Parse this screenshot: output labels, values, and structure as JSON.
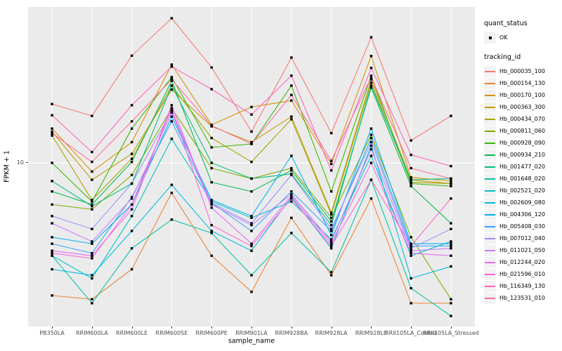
{
  "chart_data": {
    "type": "line",
    "title": "",
    "xlabel": "sample_name",
    "ylabel": "FPKM + 1",
    "y_scale": "log10",
    "y_ticks": [
      10
    ],
    "y_tick_labels": [
      "10"
    ],
    "ylim_log": [
      0.318,
      1.65
    ],
    "grid": "major-only",
    "legend_position": "right",
    "panel_bg": "#EBEBEB",
    "grid_color": "#FFFFFF",
    "key_bg": "#F2F2F2",
    "marker_color": "#000000",
    "tick_text_color": "#4D4D4D",
    "categories": [
      "PB350LA",
      "RRIM600LA",
      "RRIM600LE",
      "RRIM600SE",
      "RRIM600PE",
      "RRIM901LA",
      "RRIM928BA",
      "RRIM928LA",
      "RRIM928LE",
      "RRII105LA_Control",
      "RRII105LA_Stressed"
    ],
    "series": [
      {
        "name": "Hb_000035_100",
        "color": "#F8766D",
        "values": [
          17.6,
          15.7,
          28.0,
          40.1,
          25.0,
          13.5,
          27.5,
          13.3,
          33.4,
          12.4,
          15.7
        ]
      },
      {
        "name": "Hb_000154_130",
        "color": "#EA8331",
        "values": [
          2.8,
          2.7,
          3.6,
          7.5,
          4.1,
          2.9,
          5.9,
          3.4,
          7.1,
          2.6,
          2.6
        ]
      },
      {
        "name": "Hb_000170_100",
        "color": "#D89000",
        "values": [
          13.9,
          9.2,
          12.2,
          25.7,
          14.4,
          17.1,
          18.2,
          9.9,
          27.9,
          8.7,
          8.4
        ]
      },
      {
        "name": "Hb_000363_300",
        "color": "#C09B00",
        "values": [
          13.5,
          8.5,
          10.9,
          20.2,
          14.2,
          12.2,
          15.6,
          6.2,
          22.3,
          8.5,
          8.2
        ]
      },
      {
        "name": "Hb_000434_070",
        "color": "#A3A500",
        "values": [
          13.0,
          7.0,
          10.4,
          21.0,
          12.7,
          10.1,
          15.2,
          6.1,
          21.6,
          8.3,
          8.2
        ]
      },
      {
        "name": "Hb_000811_060",
        "color": "#7CAE00",
        "values": [
          6.7,
          6.4,
          8.9,
          16.9,
          9.5,
          8.6,
          9.5,
          5.9,
          13.1,
          4.9,
          2.7
        ]
      },
      {
        "name": "Hb_000928_090",
        "color": "#39B600",
        "values": [
          10.0,
          6.9,
          13.9,
          22.8,
          11.6,
          12.0,
          21.0,
          7.6,
          23.1,
          8.2,
          8.0
        ]
      },
      {
        "name": "Hb_000934_210",
        "color": "#00BB4E",
        "values": [
          7.6,
          6.7,
          10.1,
          22.0,
          8.3,
          7.6,
          9.3,
          5.7,
          20.6,
          8.0,
          5.6
        ]
      },
      {
        "name": "Hb_001477_020",
        "color": "#00BF7D",
        "values": [
          8.4,
          6.6,
          8.2,
          21.0,
          10.0,
          8.6,
          9.0,
          5.5,
          21.0,
          8.5,
          8.6
        ]
      },
      {
        "name": "Hb_001648_020",
        "color": "#00C1A3",
        "values": [
          4.1,
          2.6,
          4.4,
          5.8,
          5.1,
          3.4,
          5.1,
          3.5,
          8.5,
          3.0,
          2.3
        ]
      },
      {
        "name": "Hb_002521_020",
        "color": "#00BFC4",
        "values": [
          4.1,
          3.3,
          6.0,
          12.6,
          6.9,
          5.9,
          6.9,
          4.8,
          10.7,
          4.1,
          4.7
        ]
      },
      {
        "name": "Hb_002609_080",
        "color": "#00BAE0",
        "values": [
          3.6,
          3.4,
          5.2,
          8.1,
          5.2,
          4.3,
          7.2,
          4.4,
          11.8,
          3.3,
          3.7
        ]
      },
      {
        "name": "Hb_004306_120",
        "color": "#00B0F6",
        "values": [
          4.9,
          4.6,
          6.7,
          15.6,
          7.0,
          6.0,
          10.7,
          5.0,
          13.9,
          4.6,
          4.6
        ]
      },
      {
        "name": "Hb_005408_030",
        "color": "#35A2FF",
        "values": [
          4.6,
          4.2,
          7.2,
          14.9,
          6.8,
          5.2,
          7.6,
          5.2,
          12.7,
          4.5,
          4.5
        ]
      },
      {
        "name": "Hb_007012_040",
        "color": "#9590FF",
        "values": [
          6.0,
          5.3,
          8.2,
          16.5,
          6.8,
          5.6,
          8.9,
          5.3,
          12.2,
          4.4,
          5.3
        ]
      },
      {
        "name": "Hb_011021_050",
        "color": "#C77CFF",
        "values": [
          5.6,
          4.7,
          7.1,
          16.2,
          6.7,
          5.5,
          7.4,
          4.7,
          11.4,
          4.3,
          4.4
        ]
      },
      {
        "name": "Hb_012244_020",
        "color": "#E76BF3",
        "values": [
          4.3,
          4.1,
          6.4,
          17.4,
          6.5,
          4.6,
          7.3,
          4.6,
          10.0,
          4.2,
          4.1
        ]
      },
      {
        "name": "Hb_021596_010",
        "color": "#FA62DB",
        "values": [
          4.2,
          4.0,
          6.7,
          16.9,
          5.5,
          4.5,
          7.1,
          4.5,
          8.5,
          4.5,
          7.1
        ]
      },
      {
        "name": "Hb_116349_130",
        "color": "#FF62BC",
        "values": [
          15.8,
          11.1,
          17.4,
          25.2,
          20.3,
          15.9,
          23.1,
          9.3,
          24.9,
          10.8,
          9.7
        ]
      },
      {
        "name": "Hb_123531_010",
        "color": "#FF6A98",
        "values": [
          13.3,
          10.1,
          14.9,
          22.3,
          14.3,
          12.0,
          19.2,
          10.2,
          22.8,
          9.5,
          8.6
        ]
      }
    ]
  },
  "legend": {
    "quant_status": {
      "title": "quant_status",
      "items": [
        {
          "label": "OK"
        }
      ]
    },
    "tracking_id": {
      "title": "tracking_id"
    }
  }
}
